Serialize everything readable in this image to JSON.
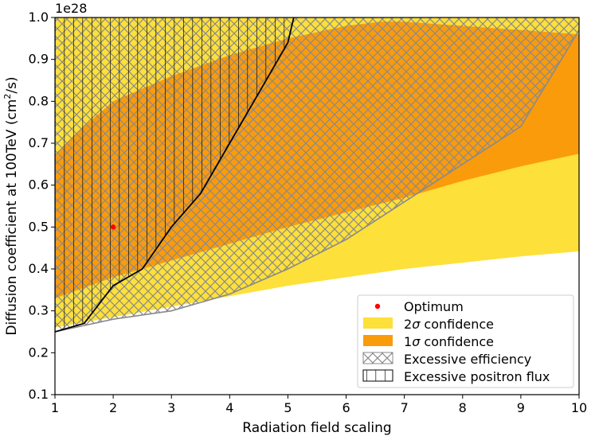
{
  "chart_data": {
    "type": "contour",
    "xlabel": "Radiation field scaling",
    "ylabel": "Diffusion coefficient at 100TeV (cm",
    "ylabel_sup": "2",
    "ylabel_tail": "/s)",
    "y_offset_label": "1e28",
    "xlim": [
      1,
      10
    ],
    "ylim": [
      0.1,
      1.0
    ],
    "x_ticks": [
      1,
      2,
      3,
      4,
      5,
      6,
      7,
      8,
      9,
      10
    ],
    "y_ticks": [
      0.1,
      0.2,
      0.3,
      0.4,
      0.5,
      0.6,
      0.7,
      0.8,
      0.9,
      1.0
    ],
    "x_tick_labels": [
      "1",
      "2",
      "3",
      "4",
      "5",
      "6",
      "7",
      "8",
      "9",
      "10"
    ],
    "y_tick_labels": [
      "0.1",
      "0.2",
      "0.3",
      "0.4",
      "0.5",
      "0.6",
      "0.7",
      "0.8",
      "0.9",
      "1.0"
    ],
    "optimum": {
      "x": 2.0,
      "y": 0.5
    },
    "colors": {
      "two_sigma": "#fde03a",
      "one_sigma": "#fa9b0c",
      "efficiency_hatch": "#8a8a8a",
      "positron_hatch": "#000000",
      "optimum": "#ff0000"
    },
    "regions": {
      "two_sigma": {
        "upper": [
          [
            1,
            1.0
          ],
          [
            10,
            1.0
          ]
        ],
        "lower": [
          [
            1,
            0.26
          ],
          [
            2,
            0.285
          ],
          [
            3,
            0.31
          ],
          [
            4,
            0.335
          ],
          [
            5,
            0.36
          ],
          [
            6,
            0.38
          ],
          [
            7,
            0.4
          ],
          [
            8,
            0.415
          ],
          [
            9,
            0.43
          ],
          [
            10,
            0.442
          ]
        ]
      },
      "one_sigma": {
        "upper": [
          [
            1,
            0.67
          ],
          [
            1.5,
            0.74
          ],
          [
            2,
            0.8
          ],
          [
            3,
            0.86
          ],
          [
            4,
            0.91
          ],
          [
            5,
            0.95
          ],
          [
            6,
            0.98
          ],
          [
            6.6,
            0.99
          ],
          [
            7,
            0.99
          ],
          [
            8,
            0.98
          ],
          [
            9,
            0.97
          ],
          [
            10,
            0.96
          ]
        ],
        "lower": [
          [
            1,
            0.33
          ],
          [
            2,
            0.38
          ],
          [
            3,
            0.42
          ],
          [
            4,
            0.46
          ],
          [
            5,
            0.5
          ],
          [
            6,
            0.535
          ],
          [
            7,
            0.57
          ],
          [
            8,
            0.61
          ],
          [
            9,
            0.645
          ],
          [
            10,
            0.675
          ]
        ]
      },
      "excessive_efficiency_boundary": [
        [
          1,
          0.25
        ],
        [
          1.5,
          0.265
        ],
        [
          2,
          0.28
        ],
        [
          3,
          0.3
        ],
        [
          4,
          0.34
        ],
        [
          5,
          0.4
        ],
        [
          6,
          0.47
        ],
        [
          7,
          0.56
        ],
        [
          8,
          0.65
        ],
        [
          9,
          0.74
        ],
        [
          10,
          0.97
        ]
      ],
      "excessive_positron_boundary": [
        [
          1,
          0.25
        ],
        [
          1.5,
          0.27
        ],
        [
          2,
          0.36
        ],
        [
          2.5,
          0.4
        ],
        [
          3,
          0.5
        ],
        [
          3.5,
          0.58
        ],
        [
          4,
          0.7
        ],
        [
          4.5,
          0.82
        ],
        [
          5,
          0.94
        ],
        [
          5.1,
          1.0
        ]
      ]
    },
    "legend": {
      "position": "lower-right",
      "entries": [
        {
          "label": "Optimum",
          "kind": "marker"
        },
        {
          "label": "2",
          "sym": "σ",
          "tail": " confidence",
          "kind": "patch-two"
        },
        {
          "label": "1",
          "sym": "σ",
          "tail": " confidence",
          "kind": "patch-one"
        },
        {
          "label": "Excessive efficiency",
          "kind": "hatch-eff"
        },
        {
          "label": "Excessive positron flux",
          "kind": "hatch-pos"
        }
      ]
    }
  }
}
